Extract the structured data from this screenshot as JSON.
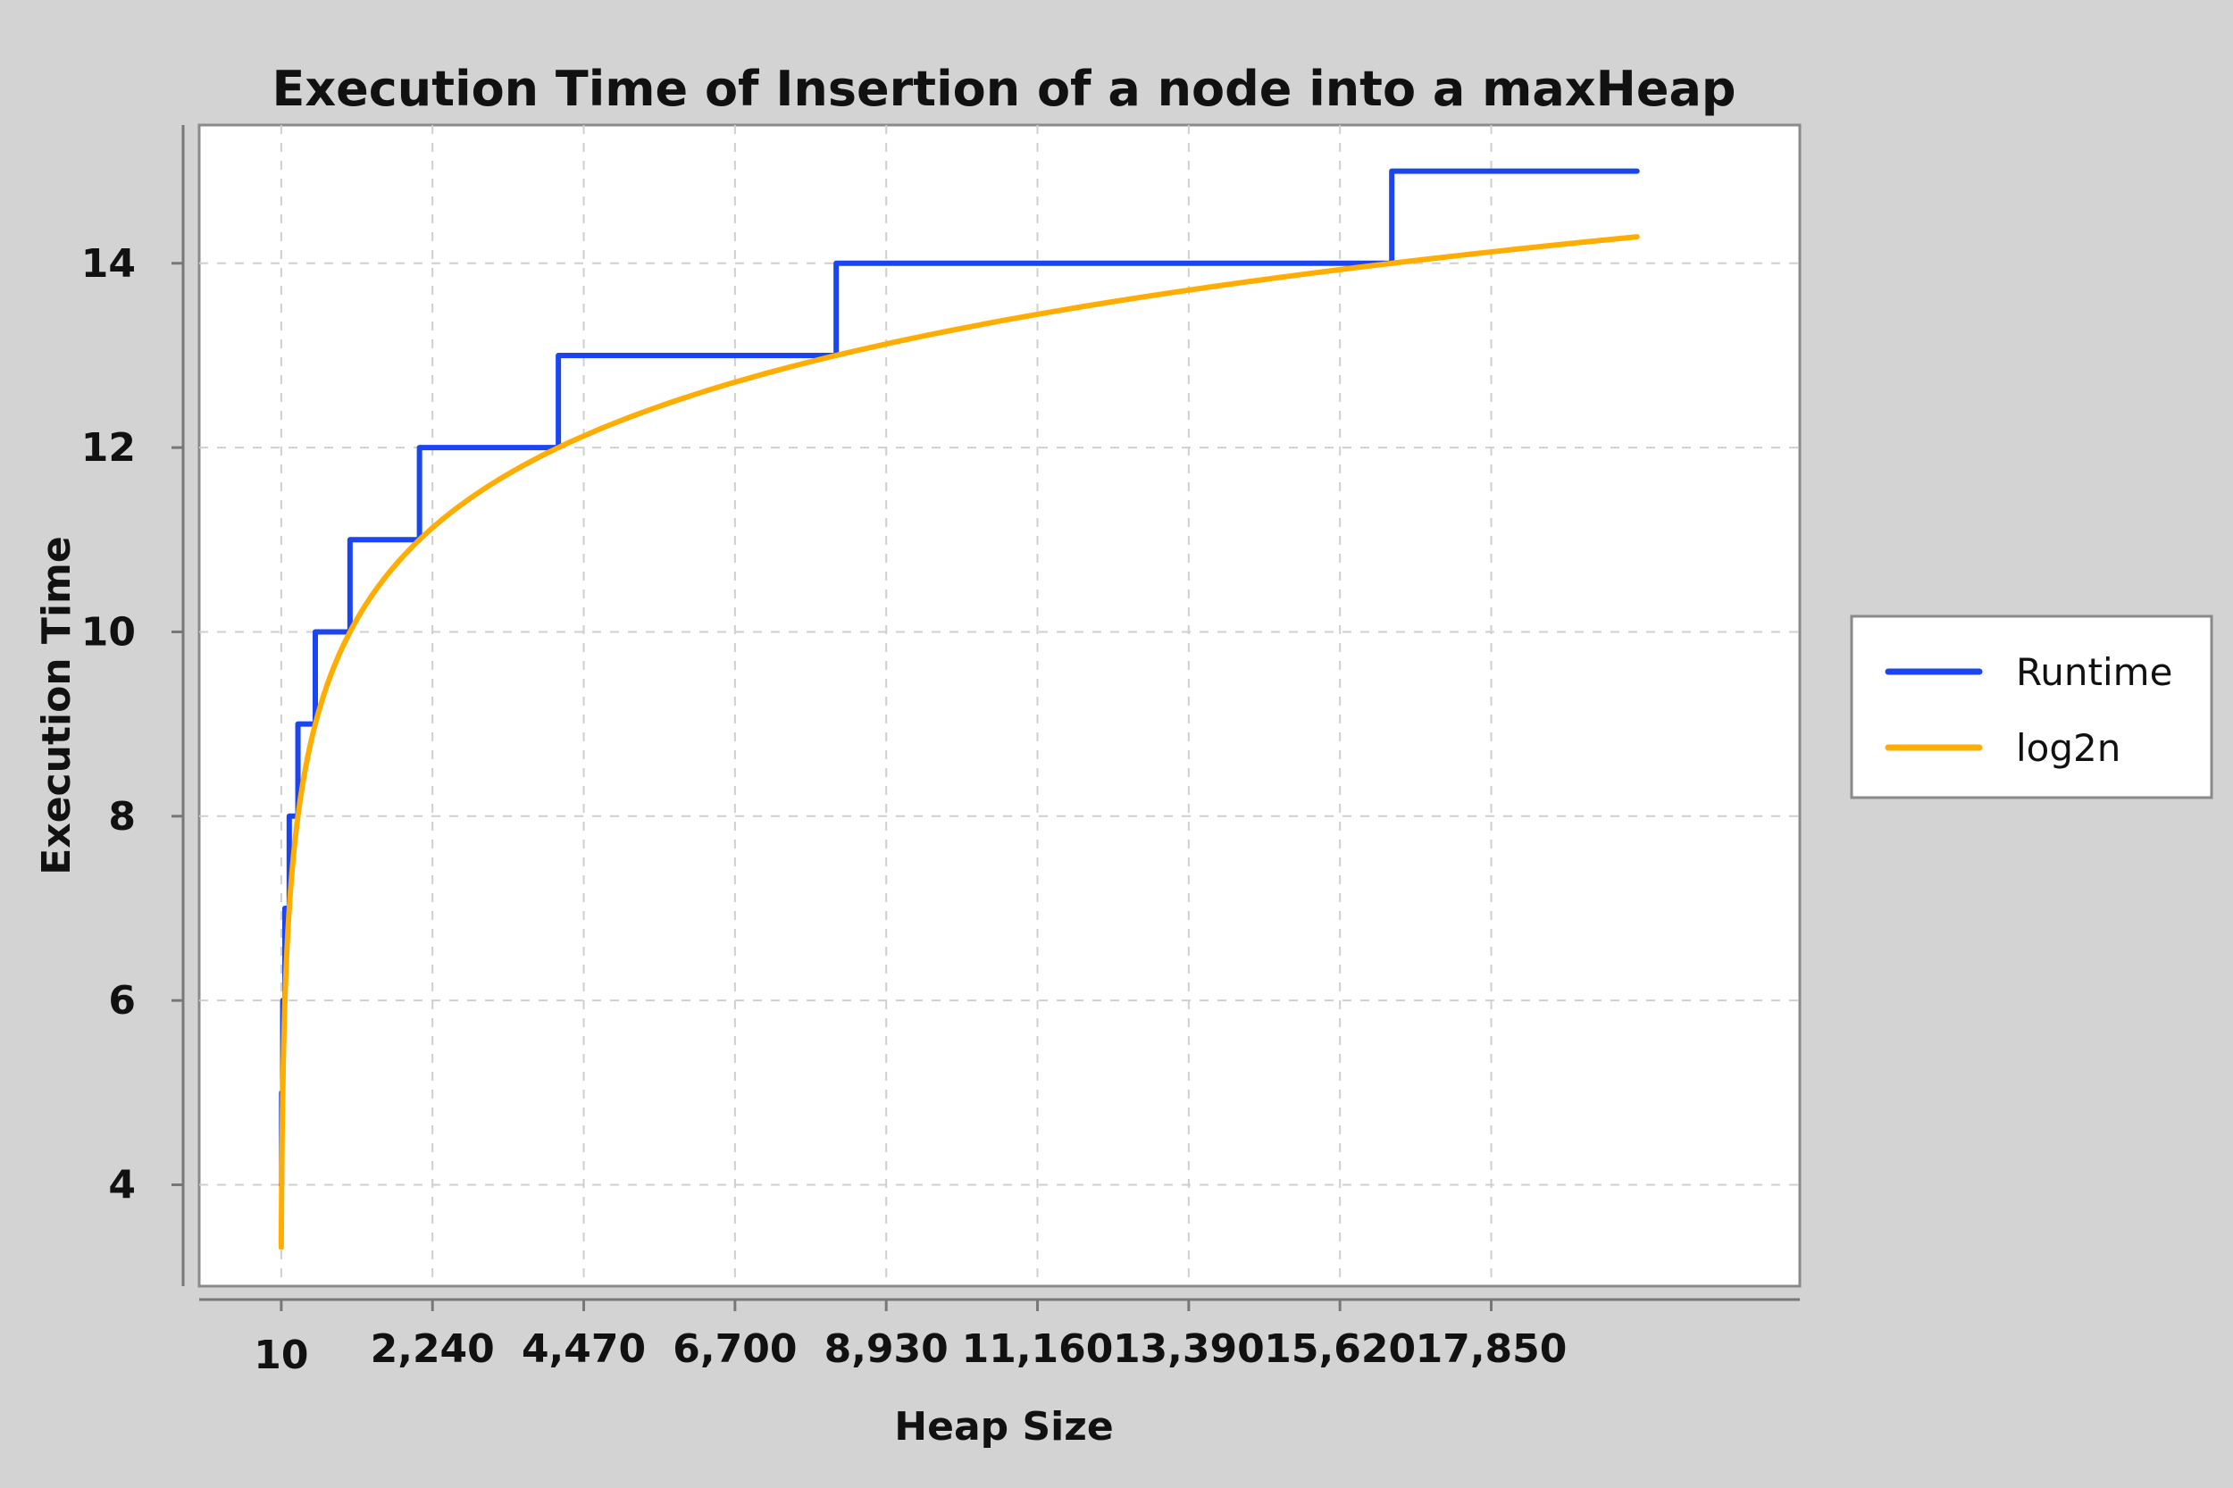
{
  "chart_data": {
    "type": "line",
    "title": "Execution Time of Insertion of a node into a maxHeap",
    "xlabel": "Heap Size",
    "ylabel": "Execution Time",
    "xlim": [
      -1200,
      22400
    ],
    "ylim": [
      2.9,
      15.5
    ],
    "x_ticks": [
      10,
      2240,
      4470,
      6700,
      8930,
      11160,
      13390,
      15620,
      17850
    ],
    "x_tick_labels": [
      "10",
      "2,240",
      "4,470",
      "6,700",
      "8,930",
      "11,160",
      "13,390",
      "15,620",
      "17,850"
    ],
    "y_ticks": [
      4,
      6,
      8,
      10,
      12,
      14
    ],
    "y_tick_labels": [
      "4",
      "6",
      "8",
      "10",
      "12",
      "14"
    ],
    "grid": true,
    "legend_position": "right",
    "series": [
      {
        "name": "Runtime",
        "color": "#1a45f0",
        "style": "step",
        "points": [
          [
            10,
            4
          ],
          [
            16,
            4
          ],
          [
            16,
            5
          ],
          [
            32,
            5
          ],
          [
            32,
            6
          ],
          [
            64,
            6
          ],
          [
            64,
            7
          ],
          [
            128,
            7
          ],
          [
            128,
            8
          ],
          [
            256,
            8
          ],
          [
            256,
            9
          ],
          [
            512,
            9
          ],
          [
            512,
            10
          ],
          [
            1024,
            10
          ],
          [
            1024,
            11
          ],
          [
            2048,
            11
          ],
          [
            2048,
            12
          ],
          [
            4096,
            12
          ],
          [
            4096,
            13
          ],
          [
            8192,
            13
          ],
          [
            8192,
            14
          ],
          [
            16384,
            14
          ],
          [
            16384,
            15
          ],
          [
            20000,
            15
          ]
        ]
      },
      {
        "name": "log2n",
        "color": "#ffad00",
        "style": "line",
        "function": "log2(x)",
        "x_range": [
          10,
          20000
        ]
      }
    ]
  }
}
